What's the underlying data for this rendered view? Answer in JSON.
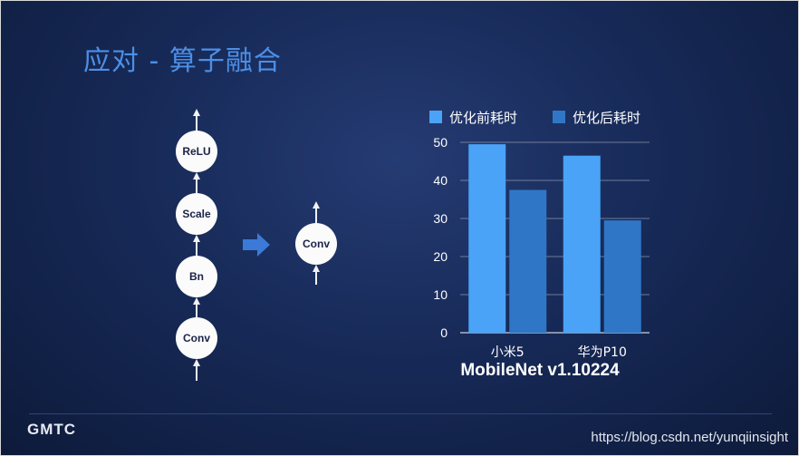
{
  "slide": {
    "title": "应对 - 算子融合",
    "logo": "GMTC",
    "watermark": "https://blog.csdn.net/yunqiinsight"
  },
  "diagram": {
    "chain": [
      "ReLU",
      "Scale",
      "Bn",
      "Conv"
    ],
    "fused": "Conv",
    "colors": {
      "node": "#fbfbfb",
      "node_text": "#1b2348",
      "arrow": "#3b7ad6"
    }
  },
  "chart_data": {
    "type": "bar",
    "caption": "MobileNet v1.10224",
    "categories": [
      "小米5",
      "华为P10"
    ],
    "series": [
      {
        "name": "优化前耗时",
        "values": [
          49.5,
          46.5
        ],
        "color": "#4aa3f7"
      },
      {
        "name": "优化后耗时",
        "values": [
          37.5,
          29.5
        ],
        "color": "#2f77c6"
      }
    ],
    "ylim": [
      0,
      50
    ],
    "yticks": [
      "0",
      "10",
      "20",
      "30",
      "40",
      "50"
    ],
    "grid": true,
    "legend_position": "top"
  }
}
